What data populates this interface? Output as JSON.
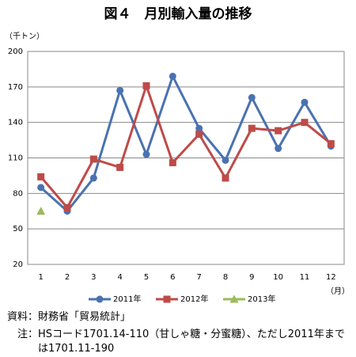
{
  "chart_data": {
    "type": "line",
    "title": "図４　月別輸入量の推移",
    "y_unit": "（千トン）",
    "x_unit": "（月）",
    "categories": [
      "1",
      "2",
      "3",
      "4",
      "5",
      "6",
      "7",
      "8",
      "9",
      "10",
      "11",
      "12"
    ],
    "series": [
      {
        "name": "2011年",
        "color": "#4a72b0",
        "marker": "circle",
        "values": [
          85,
          65,
          93,
          167,
          113,
          179,
          135,
          108,
          161,
          118,
          157,
          120
        ]
      },
      {
        "name": "2012年",
        "color": "#be4b48",
        "marker": "square",
        "values": [
          94,
          68,
          109,
          102,
          171,
          106,
          130,
          93,
          135,
          133,
          140,
          122
        ]
      },
      {
        "name": "2013年",
        "color": "#9bbb59",
        "marker": "triangle",
        "values": [
          65,
          null,
          null,
          null,
          null,
          null,
          null,
          null,
          null,
          null,
          null,
          null
        ]
      }
    ],
    "ylim": [
      20,
      200
    ],
    "yticks": [
      20,
      50,
      80,
      110,
      140,
      170,
      200
    ],
    "grid": true,
    "legend": "bottom",
    "notes": [
      {
        "label": "資料：",
        "text": "財務省「貿易統計」"
      },
      {
        "label": "注：",
        "text": "HSコード1701.14-110（甘しゃ糖・分蜜糖）、ただし2011年までは1701.11-190"
      }
    ]
  }
}
